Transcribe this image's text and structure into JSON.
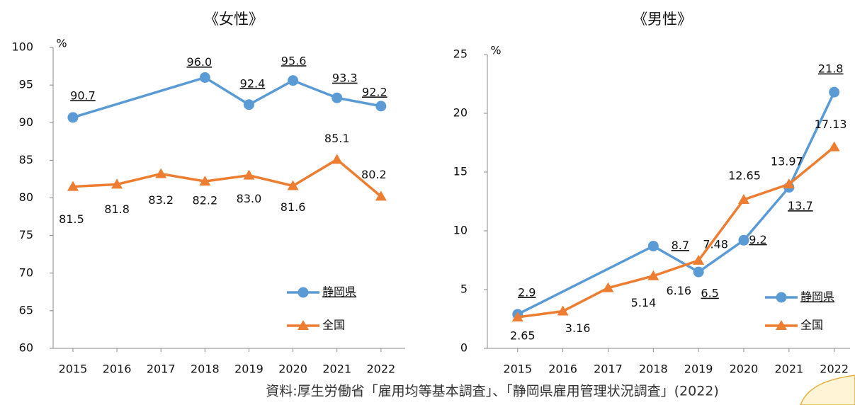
{
  "chart_data": [
    {
      "type": "line",
      "title": "《女性》",
      "y_unit": "%",
      "xlim": [
        2014.55,
        2022.55
      ],
      "xticks": [
        2015,
        2016,
        2017,
        2018,
        2019,
        2020,
        2021,
        2022
      ],
      "ylim": [
        60,
        100
      ],
      "yticks": [
        60,
        65,
        70,
        75,
        80,
        85,
        90,
        95,
        100
      ],
      "grid": false,
      "legend": "lower right",
      "series": [
        {
          "name": "静岡県",
          "color": "#5b9bd5",
          "marker": "circle",
          "x": [
            2015,
            2018,
            2019,
            2020,
            2021,
            2022
          ],
          "values": [
            90.7,
            96.0,
            92.4,
            95.6,
            93.3,
            92.2
          ],
          "value_labels": [
            "90.7",
            "96.0",
            "92.4",
            "95.6",
            "93.3",
            "92.2"
          ]
        },
        {
          "name": "全国",
          "color": "#ed7d31",
          "marker": "triangle",
          "x": [
            2015,
            2016,
            2017,
            2018,
            2019,
            2020,
            2021,
            2022
          ],
          "values": [
            81.5,
            81.8,
            83.2,
            82.2,
            83.0,
            81.6,
            85.1,
            80.2
          ],
          "value_labels": [
            "81.5",
            "81.8",
            "83.2",
            "82.2",
            "83.0",
            "81.6",
            "85.1",
            "80.2"
          ]
        }
      ]
    },
    {
      "type": "line",
      "title": "《男性》",
      "y_unit": "%",
      "xlim": [
        2014.33,
        2022.35
      ],
      "xticks": [
        2015,
        2016,
        2017,
        2018,
        2019,
        2020,
        2021,
        2022
      ],
      "ylim": [
        0,
        25
      ],
      "yticks": [
        0,
        5,
        10,
        15,
        20,
        25
      ],
      "grid": false,
      "legend": "lower right",
      "series": [
        {
          "name": "静岡県",
          "color": "#5b9bd5",
          "marker": "circle",
          "x": [
            2015,
            2018,
            2019,
            2020,
            2021,
            2022
          ],
          "values": [
            2.9,
            8.7,
            6.5,
            9.2,
            13.7,
            21.8
          ],
          "value_labels": [
            "2.9",
            "8.7",
            "6.5",
            "9.2",
            "13.7",
            "21.8"
          ]
        },
        {
          "name": "全国",
          "color": "#ed7d31",
          "marker": "triangle",
          "x": [
            2015,
            2016,
            2017,
            2018,
            2019,
            2020,
            2021,
            2022
          ],
          "values": [
            2.65,
            3.16,
            5.14,
            6.16,
            7.48,
            12.65,
            13.97,
            17.13
          ],
          "value_labels": [
            "2.65",
            "3.16",
            "5.14",
            "6.16",
            "7.48",
            "12.65",
            "13.97",
            "17.13"
          ]
        }
      ]
    }
  ],
  "source": "資料:厚生労働省「雇用均等基本調査」、「静岡県雇用管理状況調査」(2022)"
}
